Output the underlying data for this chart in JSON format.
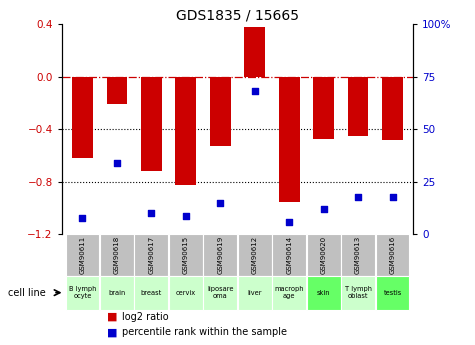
{
  "title": "GDS1835 / 15665",
  "gsm_labels": [
    "GSM90611",
    "GSM90618",
    "GSM90617",
    "GSM90615",
    "GSM90619",
    "GSM90612",
    "GSM90614",
    "GSM90620",
    "GSM90613",
    "GSM90616"
  ],
  "cell_lines": [
    "B lymph\nocyte",
    "brain",
    "breast",
    "cervix",
    "liposare\noma",
    "liver",
    "macroph\nage",
    "skin",
    "T lymph\noblast",
    "testis"
  ],
  "cell_line_colors": [
    "#ccffcc",
    "#ccffcc",
    "#ccffcc",
    "#ccffcc",
    "#ccffcc",
    "#ccffcc",
    "#ccffcc",
    "#66ff66",
    "#ccffcc",
    "#66ff66"
  ],
  "log2_ratio": [
    -0.62,
    -0.21,
    -0.72,
    -0.82,
    -0.53,
    0.38,
    -0.95,
    -0.47,
    -0.45,
    -0.48
  ],
  "percentile_rank": [
    8,
    34,
    10,
    9,
    15,
    68,
    6,
    12,
    18,
    18
  ],
  "bar_color": "#cc0000",
  "dot_color": "#0000cc",
  "ylim_left": [
    -1.2,
    0.4
  ],
  "ylim_right": [
    0,
    100
  ],
  "yticks_left": [
    0.4,
    0.0,
    -0.4,
    -0.8,
    -1.2
  ],
  "yticks_right": [
    100,
    75,
    50,
    25,
    0
  ],
  "hline_y": 0,
  "dotline_y": [
    -0.4,
    -0.8
  ],
  "legend_red": "log2 ratio",
  "legend_blue": "percentile rank within the sample",
  "cell_line_label": "cell line"
}
